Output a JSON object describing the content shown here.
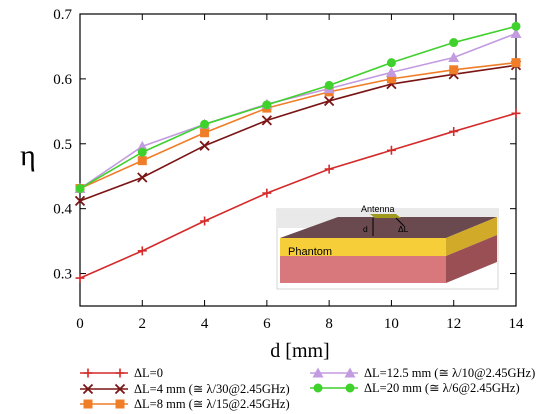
{
  "chart_data": {
    "type": "line",
    "xlabel": "d [mm]",
    "ylabel": "η",
    "xlim": [
      0,
      14
    ],
    "ylim": [
      0.25,
      0.7
    ],
    "x_ticks": [
      "0",
      "2",
      "4",
      "6",
      "8",
      "10",
      "12",
      "14"
    ],
    "y_ticks": [
      "0.3",
      "0.4",
      "0.5",
      "0.6",
      "0.7"
    ],
    "x": [
      0,
      2,
      4,
      6,
      8,
      10,
      12,
      14
    ],
    "series": [
      {
        "name": "ΔL=0",
        "color": "#d42a2a",
        "marker": "plus",
        "values": [
          0.293,
          0.335,
          0.381,
          0.424,
          0.461,
          0.49,
          0.519,
          0.547
        ]
      },
      {
        "name": "ΔL=4 mm (≅ λ/30@2.45GHz)",
        "color": "#7a1414",
        "marker": "x",
        "values": [
          0.412,
          0.448,
          0.497,
          0.536,
          0.566,
          0.592,
          0.607,
          0.621
        ]
      },
      {
        "name": "ΔL=8 mm (≅ λ/15@2.45GHz)",
        "color": "#f07d28",
        "marker": "square",
        "values": [
          0.431,
          0.474,
          0.517,
          0.555,
          0.58,
          0.6,
          0.614,
          0.625
        ]
      },
      {
        "name": "ΔL=12.5 mm (≅ λ/10@2.45GHz)",
        "color": "#c39be0",
        "marker": "triangle",
        "values": [
          0.431,
          0.496,
          0.53,
          0.561,
          0.585,
          0.61,
          0.633,
          0.67
        ]
      },
      {
        "name": "ΔL=20 mm (≅ λ/6@2.45GHz)",
        "color": "#3fd12c",
        "marker": "circle",
        "values": [
          0.431,
          0.487,
          0.53,
          0.56,
          0.59,
          0.625,
          0.656,
          0.681
        ]
      }
    ],
    "legend_placement": "bottom",
    "grid": false
  },
  "inset": {
    "antenna_label": "Antenna",
    "d_label": "d",
    "dl_label": "ΔL",
    "phantom_label": "Phantom"
  }
}
